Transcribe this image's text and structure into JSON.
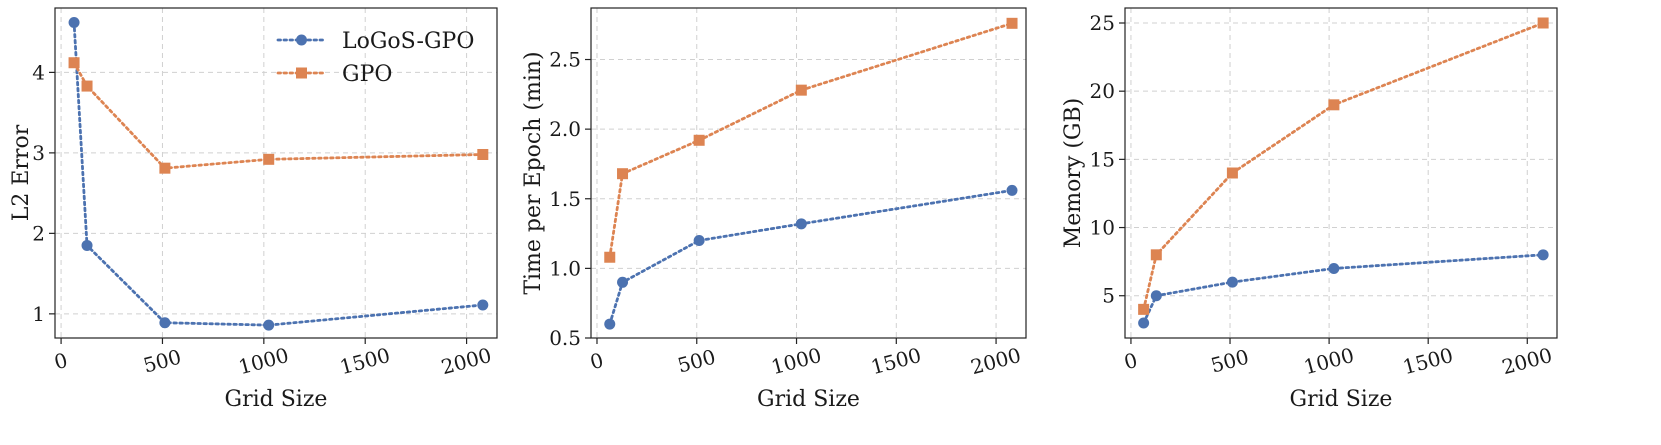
{
  "colors": {
    "logos": "#4C72B0",
    "gpo": "#DD8452"
  },
  "legend": {
    "placement": "top-right",
    "items": [
      {
        "name": "LoGoS-GPO",
        "marker": "circle",
        "color": "#4C72B0"
      },
      {
        "name": "GPO",
        "marker": "square",
        "color": "#DD8452"
      }
    ]
  },
  "chart_data": [
    {
      "type": "line",
      "xlabel": "Grid Size",
      "ylabel": "L2 Error",
      "xlim": [
        -30,
        2150
      ],
      "ylim": [
        0.7,
        4.8
      ],
      "xticks": [
        0,
        500,
        1000,
        1500,
        2000
      ],
      "yticks": [
        1,
        2,
        3,
        4
      ],
      "grid": true,
      "show_legend": true,
      "series": [
        {
          "name": "LoGoS-GPO",
          "x": [
            64,
            128,
            512,
            1024,
            2080
          ],
          "y": [
            4.62,
            1.85,
            0.89,
            0.86,
            1.11
          ]
        },
        {
          "name": "GPO",
          "x": [
            64,
            128,
            512,
            1024,
            2080
          ],
          "y": [
            4.12,
            3.83,
            2.81,
            2.92,
            2.98
          ]
        }
      ]
    },
    {
      "type": "line",
      "xlabel": "Grid Size",
      "ylabel": "Time per Epoch (min)",
      "xlim": [
        -30,
        2150
      ],
      "ylim": [
        0.5,
        2.87
      ],
      "xticks": [
        0,
        500,
        1000,
        1500,
        2000
      ],
      "yticks": [
        0.5,
        1.0,
        1.5,
        2.0,
        2.5
      ],
      "ytick_format": "0.0",
      "grid": true,
      "show_legend": false,
      "series": [
        {
          "name": "LoGoS-GPO",
          "x": [
            64,
            128,
            512,
            1024,
            2080
          ],
          "y": [
            0.6,
            0.9,
            1.2,
            1.32,
            1.56
          ]
        },
        {
          "name": "GPO",
          "x": [
            64,
            128,
            512,
            1024,
            2080
          ],
          "y": [
            1.08,
            1.68,
            1.92,
            2.28,
            2.76
          ]
        }
      ]
    },
    {
      "type": "line",
      "xlabel": "Grid Size",
      "ylabel": "Memory (GB)",
      "xlim": [
        -30,
        2150
      ],
      "ylim": [
        1.9,
        26.1
      ],
      "xticks": [
        0,
        500,
        1000,
        1500,
        2000
      ],
      "yticks": [
        5,
        10,
        15,
        20,
        25
      ],
      "grid": true,
      "show_legend": false,
      "series": [
        {
          "name": "LoGoS-GPO",
          "x": [
            64,
            128,
            512,
            1024,
            2080
          ],
          "y": [
            3,
            5,
            6,
            7,
            8
          ]
        },
        {
          "name": "GPO",
          "x": [
            64,
            128,
            512,
            1024,
            2080
          ],
          "y": [
            4,
            8,
            14,
            19,
            25
          ]
        }
      ]
    }
  ]
}
